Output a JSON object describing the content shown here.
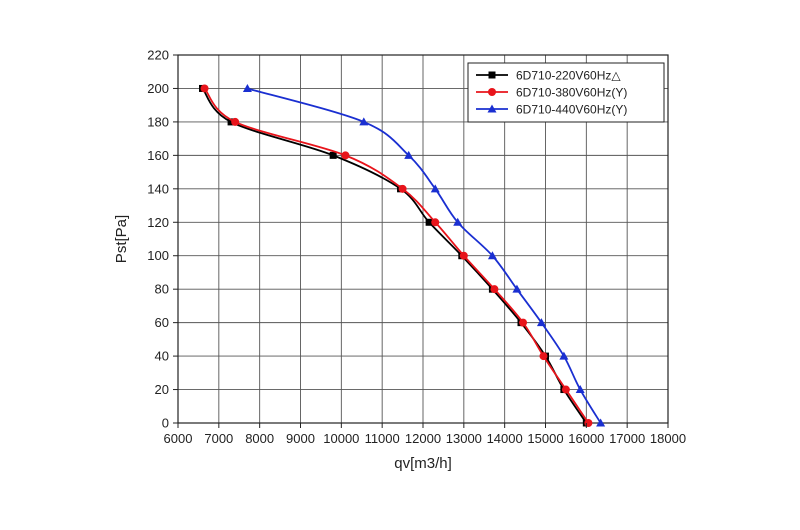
{
  "chart_data": {
    "type": "line",
    "title": "",
    "xlabel": "qv[m3/h]",
    "ylabel": "Pst[Pa]",
    "xlim": [
      6000,
      18000
    ],
    "ylim": [
      0,
      220
    ],
    "xticks": [
      6000,
      7000,
      8000,
      9000,
      10000,
      11000,
      12000,
      13000,
      14000,
      15000,
      16000,
      17000,
      18000
    ],
    "yticks": [
      0,
      20,
      40,
      60,
      80,
      100,
      120,
      140,
      160,
      180,
      200,
      220
    ],
    "grid": true,
    "legend_position": "top-right",
    "series": [
      {
        "name": "6D710-220V60Hz△",
        "color": "#000000",
        "marker": "square",
        "points": [
          [
            6600,
            200
          ],
          [
            7300,
            180
          ],
          [
            9800,
            160
          ],
          [
            11450,
            140
          ],
          [
            12150,
            120
          ],
          [
            12950,
            100
          ],
          [
            13700,
            80
          ],
          [
            14400,
            60
          ],
          [
            15000,
            40
          ],
          [
            15450,
            20
          ],
          [
            16000,
            0
          ]
        ]
      },
      {
        "name": "6D710-380V60Hz(Y)",
        "color": "#e8141b",
        "marker": "circle",
        "points": [
          [
            6650,
            200
          ],
          [
            7400,
            180
          ],
          [
            10100,
            160
          ],
          [
            11500,
            140
          ],
          [
            12300,
            120
          ],
          [
            13000,
            100
          ],
          [
            13750,
            80
          ],
          [
            14450,
            60
          ],
          [
            14950,
            40
          ],
          [
            15500,
            20
          ],
          [
            16050,
            0
          ]
        ]
      },
      {
        "name": "6D710-440V60Hz(Y)",
        "color": "#1a2fd1",
        "marker": "triangle",
        "points": [
          [
            7700,
            200
          ],
          [
            10550,
            180
          ],
          [
            11650,
            160
          ],
          [
            12300,
            140
          ],
          [
            12850,
            120
          ],
          [
            13700,
            100
          ],
          [
            14300,
            80
          ],
          [
            14900,
            60
          ],
          [
            15450,
            40
          ],
          [
            15850,
            20
          ],
          [
            16350,
            0
          ]
        ]
      }
    ]
  }
}
